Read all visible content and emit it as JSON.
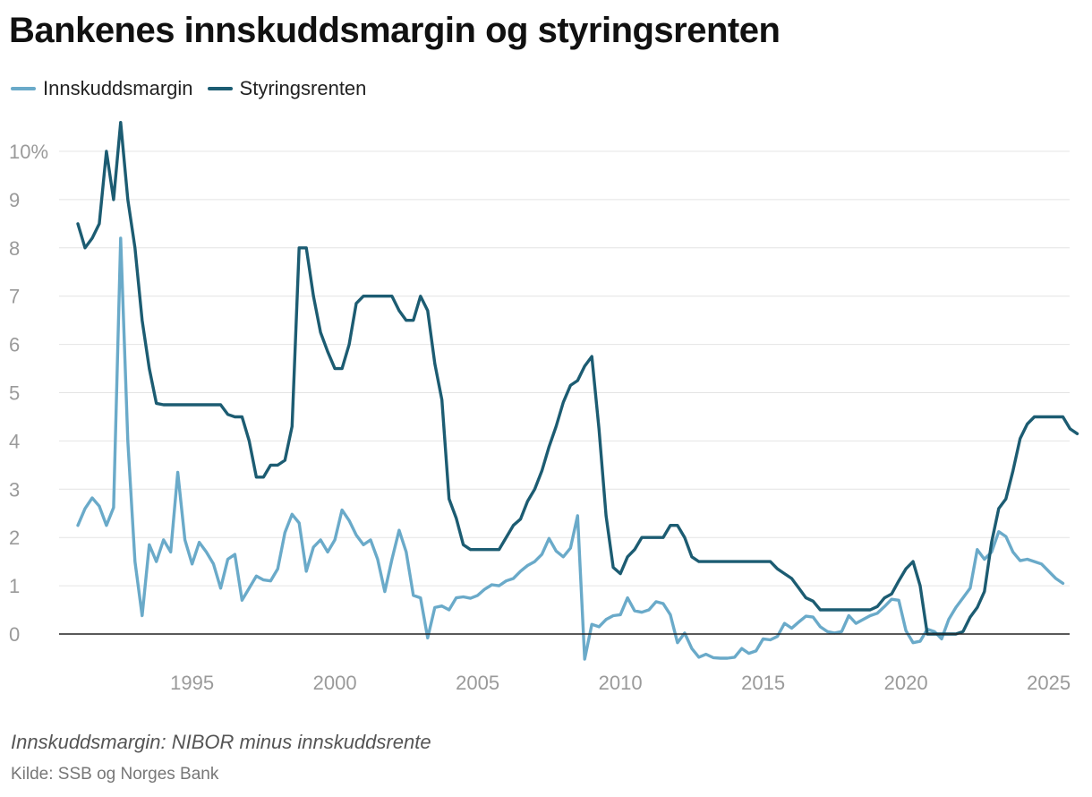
{
  "title": "Bankenes innskuddsmargin og styringsrenten",
  "note": "Innskuddsmargin: NIBOR minus innskuddsrente",
  "source": "Kilde: SSB og Norges Bank",
  "colors": {
    "margin": "#6aaac9",
    "rate": "#1c5c72",
    "grid": "#e4e4e4",
    "zero": "#222222",
    "tick": "#9a9a9a"
  },
  "chart_data": {
    "type": "line",
    "title": "Bankenes innskuddsmargin og styringsrenten",
    "xlabel": "",
    "ylabel": "",
    "xlim": [
      1991.0,
      2025.8
    ],
    "ylim": [
      -0.6,
      10.6
    ],
    "grid": true,
    "legend_position": "top-left",
    "x_ticks": [
      {
        "value": 1995,
        "label": "1995"
      },
      {
        "value": 2000,
        "label": "2000"
      },
      {
        "value": 2005,
        "label": "2005"
      },
      {
        "value": 2010,
        "label": "2010"
      },
      {
        "value": 2015,
        "label": "2015"
      },
      {
        "value": 2020,
        "label": "2020"
      },
      {
        "value": 2025,
        "label": "2025"
      }
    ],
    "y_ticks": [
      {
        "value": 0,
        "label": "0"
      },
      {
        "value": 1,
        "label": "1"
      },
      {
        "value": 2,
        "label": "2"
      },
      {
        "value": 3,
        "label": "3"
      },
      {
        "value": 4,
        "label": "4"
      },
      {
        "value": 5,
        "label": "5"
      },
      {
        "value": 6,
        "label": "6"
      },
      {
        "value": 7,
        "label": "7"
      },
      {
        "value": 8,
        "label": "8"
      },
      {
        "value": 9,
        "label": "9"
      },
      {
        "value": 10,
        "label": "10%"
      }
    ],
    "series": [
      {
        "name": "Innskuddsmargin",
        "color": "#6aaac9",
        "points": [
          [
            1991.0,
            2.25
          ],
          [
            1991.25,
            2.6
          ],
          [
            1991.5,
            2.82
          ],
          [
            1991.75,
            2.65
          ],
          [
            1992.0,
            2.25
          ],
          [
            1992.25,
            2.62
          ],
          [
            1992.5,
            8.2
          ],
          [
            1992.75,
            4.0
          ],
          [
            1993.0,
            1.5
          ],
          [
            1993.25,
            0.38
          ],
          [
            1993.5,
            1.85
          ],
          [
            1993.75,
            1.5
          ],
          [
            1994.0,
            1.95
          ],
          [
            1994.25,
            1.7
          ],
          [
            1994.5,
            3.35
          ],
          [
            1994.75,
            1.95
          ],
          [
            1995.0,
            1.45
          ],
          [
            1995.25,
            1.9
          ],
          [
            1995.5,
            1.7
          ],
          [
            1995.75,
            1.45
          ],
          [
            1996.0,
            0.95
          ],
          [
            1996.25,
            1.55
          ],
          [
            1996.5,
            1.65
          ],
          [
            1996.75,
            0.7
          ],
          [
            1997.0,
            0.95
          ],
          [
            1997.25,
            1.2
          ],
          [
            1997.5,
            1.12
          ],
          [
            1997.75,
            1.1
          ],
          [
            1998.0,
            1.35
          ],
          [
            1998.25,
            2.1
          ],
          [
            1998.5,
            2.48
          ],
          [
            1998.75,
            2.3
          ],
          [
            1999.0,
            1.3
          ],
          [
            1999.25,
            1.8
          ],
          [
            1999.5,
            1.95
          ],
          [
            1999.75,
            1.7
          ],
          [
            2000.0,
            1.95
          ],
          [
            2000.25,
            2.57
          ],
          [
            2000.5,
            2.35
          ],
          [
            2000.75,
            2.05
          ],
          [
            2001.0,
            1.85
          ],
          [
            2001.25,
            1.95
          ],
          [
            2001.5,
            1.55
          ],
          [
            2001.75,
            0.88
          ],
          [
            2002.0,
            1.55
          ],
          [
            2002.25,
            2.15
          ],
          [
            2002.5,
            1.7
          ],
          [
            2002.75,
            0.8
          ],
          [
            2003.0,
            0.75
          ],
          [
            2003.25,
            -0.08
          ],
          [
            2003.5,
            0.55
          ],
          [
            2003.75,
            0.58
          ],
          [
            2004.0,
            0.5
          ],
          [
            2004.25,
            0.75
          ],
          [
            2004.5,
            0.77
          ],
          [
            2004.75,
            0.74
          ],
          [
            2005.0,
            0.8
          ],
          [
            2005.25,
            0.93
          ],
          [
            2005.5,
            1.02
          ],
          [
            2005.75,
            1.0
          ],
          [
            2006.0,
            1.1
          ],
          [
            2006.25,
            1.15
          ],
          [
            2006.5,
            1.3
          ],
          [
            2006.75,
            1.42
          ],
          [
            2007.0,
            1.5
          ],
          [
            2007.25,
            1.65
          ],
          [
            2007.5,
            1.98
          ],
          [
            2007.75,
            1.72
          ],
          [
            2008.0,
            1.6
          ],
          [
            2008.25,
            1.78
          ],
          [
            2008.5,
            2.45
          ],
          [
            2008.75,
            -0.52
          ],
          [
            2009.0,
            0.2
          ],
          [
            2009.25,
            0.15
          ],
          [
            2009.5,
            0.3
          ],
          [
            2009.75,
            0.38
          ],
          [
            2010.0,
            0.4
          ],
          [
            2010.25,
            0.75
          ],
          [
            2010.5,
            0.48
          ],
          [
            2010.75,
            0.45
          ],
          [
            2011.0,
            0.5
          ],
          [
            2011.25,
            0.67
          ],
          [
            2011.5,
            0.63
          ],
          [
            2011.75,
            0.4
          ],
          [
            2012.0,
            -0.18
          ],
          [
            2012.25,
            0.02
          ],
          [
            2012.5,
            -0.3
          ],
          [
            2012.75,
            -0.48
          ],
          [
            2013.0,
            -0.42
          ],
          [
            2013.25,
            -0.49
          ],
          [
            2013.5,
            -0.5
          ],
          [
            2013.75,
            -0.5
          ],
          [
            2014.0,
            -0.48
          ],
          [
            2014.25,
            -0.3
          ],
          [
            2014.5,
            -0.4
          ],
          [
            2014.75,
            -0.35
          ],
          [
            2015.0,
            -0.1
          ],
          [
            2015.25,
            -0.12
          ],
          [
            2015.5,
            -0.05
          ],
          [
            2015.75,
            0.22
          ],
          [
            2016.0,
            0.12
          ],
          [
            2016.25,
            0.25
          ],
          [
            2016.5,
            0.37
          ],
          [
            2016.75,
            0.35
          ],
          [
            2017.0,
            0.15
          ],
          [
            2017.25,
            0.05
          ],
          [
            2017.5,
            0.02
          ],
          [
            2017.75,
            0.05
          ],
          [
            2018.0,
            0.38
          ],
          [
            2018.25,
            0.22
          ],
          [
            2018.5,
            0.3
          ],
          [
            2018.75,
            0.38
          ],
          [
            2019.0,
            0.43
          ],
          [
            2019.25,
            0.57
          ],
          [
            2019.5,
            0.72
          ],
          [
            2019.75,
            0.7
          ],
          [
            2020.0,
            0.07
          ],
          [
            2020.25,
            -0.18
          ],
          [
            2020.5,
            -0.15
          ],
          [
            2020.75,
            0.1
          ],
          [
            2021.0,
            0.05
          ],
          [
            2021.25,
            -0.1
          ],
          [
            2021.5,
            0.3
          ],
          [
            2021.75,
            0.55
          ],
          [
            2022.0,
            0.75
          ],
          [
            2022.25,
            0.95
          ],
          [
            2022.5,
            1.75
          ],
          [
            2022.75,
            1.55
          ],
          [
            2023.0,
            1.7
          ],
          [
            2023.25,
            2.12
          ],
          [
            2023.5,
            2.02
          ],
          [
            2023.75,
            1.7
          ],
          [
            2024.0,
            1.52
          ],
          [
            2024.25,
            1.55
          ],
          [
            2024.5,
            1.5
          ],
          [
            2024.75,
            1.45
          ],
          [
            2025.0,
            1.3
          ],
          [
            2025.25,
            1.15
          ],
          [
            2025.5,
            1.05
          ]
        ]
      },
      {
        "name": "Styringsrenten",
        "color": "#1c5c72",
        "points": [
          [
            1991.0,
            8.5
          ],
          [
            1991.25,
            8.0
          ],
          [
            1991.5,
            8.2
          ],
          [
            1991.75,
            8.5
          ],
          [
            1992.0,
            10.0
          ],
          [
            1992.25,
            9.0
          ],
          [
            1992.5,
            10.6
          ],
          [
            1992.75,
            9.0
          ],
          [
            1993.0,
            8.0
          ],
          [
            1993.25,
            6.5
          ],
          [
            1993.5,
            5.5
          ],
          [
            1993.75,
            4.78
          ],
          [
            1994.0,
            4.75
          ],
          [
            1995.0,
            4.75
          ],
          [
            1995.5,
            4.75
          ],
          [
            1996.0,
            4.75
          ],
          [
            1996.25,
            4.55
          ],
          [
            1996.5,
            4.5
          ],
          [
            1996.75,
            4.5
          ],
          [
            1997.0,
            4.0
          ],
          [
            1997.25,
            3.25
          ],
          [
            1997.5,
            3.25
          ],
          [
            1997.75,
            3.5
          ],
          [
            1998.0,
            3.5
          ],
          [
            1998.25,
            3.6
          ],
          [
            1998.5,
            4.3
          ],
          [
            1998.75,
            8.0
          ],
          [
            1999.0,
            8.0
          ],
          [
            1999.25,
            7.0
          ],
          [
            1999.5,
            6.25
          ],
          [
            1999.75,
            5.85
          ],
          [
            2000.0,
            5.5
          ],
          [
            2000.25,
            5.5
          ],
          [
            2000.5,
            6.0
          ],
          [
            2000.75,
            6.85
          ],
          [
            2001.0,
            7.0
          ],
          [
            2001.5,
            7.0
          ],
          [
            2002.0,
            7.0
          ],
          [
            2002.25,
            6.7
          ],
          [
            2002.5,
            6.5
          ],
          [
            2002.75,
            6.5
          ],
          [
            2003.0,
            7.0
          ],
          [
            2003.25,
            6.7
          ],
          [
            2003.5,
            5.6
          ],
          [
            2003.75,
            4.85
          ],
          [
            2004.0,
            2.8
          ],
          [
            2004.25,
            2.4
          ],
          [
            2004.5,
            1.85
          ],
          [
            2004.75,
            1.75
          ],
          [
            2005.0,
            1.75
          ],
          [
            2005.5,
            1.75
          ],
          [
            2005.75,
            1.75
          ],
          [
            2006.0,
            2.0
          ],
          [
            2006.25,
            2.25
          ],
          [
            2006.5,
            2.38
          ],
          [
            2006.75,
            2.75
          ],
          [
            2007.0,
            3.0
          ],
          [
            2007.25,
            3.38
          ],
          [
            2007.5,
            3.88
          ],
          [
            2007.75,
            4.3
          ],
          [
            2008.0,
            4.8
          ],
          [
            2008.25,
            5.15
          ],
          [
            2008.5,
            5.25
          ],
          [
            2008.75,
            5.55
          ],
          [
            2009.0,
            5.75
          ],
          [
            2009.25,
            4.25
          ],
          [
            2009.5,
            2.45
          ],
          [
            2009.75,
            1.38
          ],
          [
            2010.0,
            1.25
          ],
          [
            2010.25,
            1.6
          ],
          [
            2010.5,
            1.75
          ],
          [
            2010.75,
            2.0
          ],
          [
            2011.0,
            2.0
          ],
          [
            2011.5,
            2.0
          ],
          [
            2011.75,
            2.25
          ],
          [
            2012.0,
            2.25
          ],
          [
            2012.25,
            2.0
          ],
          [
            2012.5,
            1.6
          ],
          [
            2012.75,
            1.5
          ],
          [
            2013.0,
            1.5
          ],
          [
            2014.0,
            1.5
          ],
          [
            2015.0,
            1.5
          ],
          [
            2015.25,
            1.5
          ],
          [
            2015.5,
            1.35
          ],
          [
            2015.75,
            1.25
          ],
          [
            2016.0,
            1.15
          ],
          [
            2016.25,
            0.95
          ],
          [
            2016.5,
            0.75
          ],
          [
            2016.75,
            0.68
          ],
          [
            2017.0,
            0.5
          ],
          [
            2017.5,
            0.5
          ],
          [
            2018.0,
            0.5
          ],
          [
            2018.5,
            0.5
          ],
          [
            2018.75,
            0.5
          ],
          [
            2019.0,
            0.57
          ],
          [
            2019.25,
            0.75
          ],
          [
            2019.5,
            0.83
          ],
          [
            2019.75,
            1.1
          ],
          [
            2020.0,
            1.35
          ],
          [
            2020.25,
            1.5
          ],
          [
            2020.5,
            1.0
          ],
          [
            2020.75,
            0.0
          ],
          [
            2021.0,
            0.0
          ],
          [
            2021.5,
            0.0
          ],
          [
            2021.75,
            0.0
          ],
          [
            2022.0,
            0.05
          ],
          [
            2022.25,
            0.35
          ],
          [
            2022.5,
            0.55
          ],
          [
            2022.75,
            0.88
          ],
          [
            2023.0,
            1.9
          ],
          [
            2023.25,
            2.6
          ],
          [
            2023.5,
            2.8
          ],
          [
            2023.75,
            3.38
          ],
          [
            2024.0,
            4.05
          ],
          [
            2024.25,
            4.35
          ],
          [
            2024.5,
            4.5
          ],
          [
            2025.0,
            4.5
          ],
          [
            2025.5,
            4.5
          ],
          [
            2025.75,
            4.25
          ],
          [
            2026.0,
            4.15
          ]
        ]
      }
    ]
  }
}
